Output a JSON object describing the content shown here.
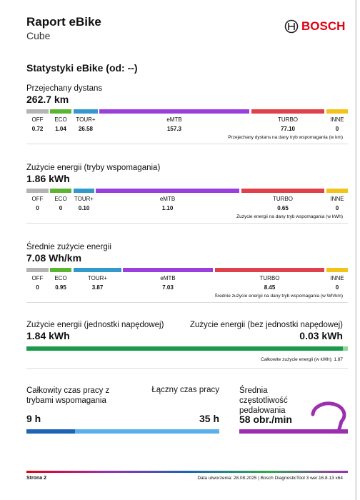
{
  "header": {
    "title": "Raport eBike",
    "subtitle": "Cube",
    "brand": "BOSCH"
  },
  "section_title": "Statystyki eBike (od: --)",
  "mode_sections": [
    {
      "label": "Przejechany dystans",
      "total": "262.7 km",
      "note": "Przejechany dystans na dany tryb wspomagania (w km)",
      "modes": [
        {
          "name": "OFF",
          "value": "0.72"
        },
        {
          "name": "ECO",
          "value": "1.04"
        },
        {
          "name": "TOUR+",
          "value": "26.58"
        },
        {
          "name": "eMTB",
          "value": "157.3"
        },
        {
          "name": "TURBO",
          "value": "77.10"
        },
        {
          "name": "INNE",
          "value": "0"
        }
      ]
    },
    {
      "label": "Zużycie energii (tryby wspomagania)",
      "total": "1.86 kWh",
      "note": "Zużycie energii na dany tryb wspomagania (w kWh)",
      "modes": [
        {
          "name": "OFF",
          "value": "0"
        },
        {
          "name": "ECO",
          "value": "0"
        },
        {
          "name": "TOUR+",
          "value": "0.10"
        },
        {
          "name": "eMTB",
          "value": "1.10"
        },
        {
          "name": "TURBO",
          "value": "0.65"
        },
        {
          "name": "INNE",
          "value": "0"
        }
      ]
    },
    {
      "label": "Średnie zużycie energii",
      "total": "7.08 Wh/km",
      "note": "Średnie zużycie energii na dany tryb wspomagania (w Wh/km)",
      "modes": [
        {
          "name": "OFF",
          "value": "0"
        },
        {
          "name": "ECO",
          "value": "0.95"
        },
        {
          "name": "TOUR+",
          "value": "3.87"
        },
        {
          "name": "eMTB",
          "value": "7.03"
        },
        {
          "name": "TURBO",
          "value": "8.45"
        },
        {
          "name": "INNE",
          "value": "0"
        }
      ]
    }
  ],
  "energy": {
    "drive_unit": {
      "label": "Zużycie energii (jednostki napędowej)",
      "value": "1.84 kWh"
    },
    "other": {
      "label": "Zużycie energii (bez jednostki napędowej)",
      "value": "0.03 kWh"
    },
    "note": "Całkowite zużycie energii (w  kWh): 1.87"
  },
  "time": {
    "assisted": {
      "label": "Całkowity czas pracy z trybami wspomagania",
      "value": "9 h"
    },
    "total": {
      "label": "Łączny czas pracy",
      "value": "35 h"
    },
    "cadence": {
      "label": "Średnia częstotliwość pedałowania",
      "value": "58 obr./min"
    }
  },
  "footer": {
    "page": "Strona 2",
    "info": "Data utworzenia: 28.08.2025 | Bosch DiagnosticTool 3 wer.16.8.13 x64"
  }
}
